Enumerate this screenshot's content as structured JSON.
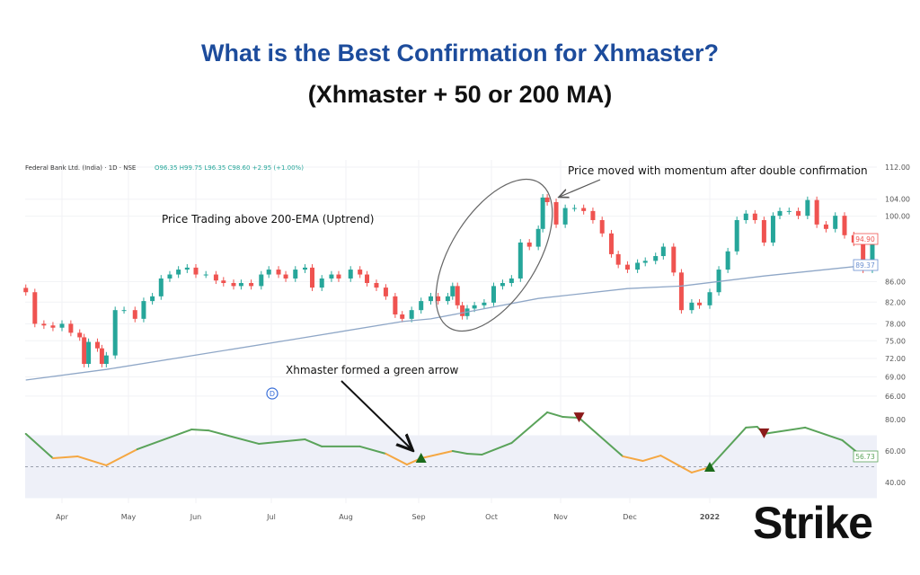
{
  "title": "What is the Best Confirmation for Xhmaster?",
  "subtitle": "(Xhmaster + 50 or 200 MA)",
  "logo_text": "Strike",
  "colors": {
    "title": "#1d4c9c",
    "up": "#26a69a",
    "down": "#ef5350",
    "ema": "#8fa7c7",
    "osc_green": "#5aa35a",
    "osc_orange": "#f5a742",
    "arrow_up": "#1b6b1b",
    "arrow_down": "#8b1a1a",
    "band": "#eef0f8"
  },
  "chart_data": {
    "type": "candlestick",
    "legend": {
      "symbol": "Federal Bank Ltd. (India) · 1D · NSE",
      "open": "O96.35",
      "high": "H99.75",
      "low": "L96.35",
      "close": "C98.60",
      "change": "+2.95 (+1.00%)"
    },
    "y_scale": "log",
    "ylim": [
      64,
      114
    ],
    "y_ticks": [
      "112.00",
      "104.00",
      "100.00",
      "86.00",
      "82.00",
      "78.00",
      "75.00",
      "72.00",
      "69.00",
      "66.00"
    ],
    "x_ticks": [
      {
        "label": "Apr",
        "date": "2021-04-01"
      },
      {
        "label": "May",
        "date": "2021-05-01"
      },
      {
        "label": "Jun",
        "date": "2021-06-01"
      },
      {
        "label": "Jul",
        "date": "2021-07-01"
      },
      {
        "label": "Aug",
        "date": "2021-08-01"
      },
      {
        "label": "Sep",
        "date": "2021-09-01"
      },
      {
        "label": "Oct",
        "date": "2021-10-01"
      },
      {
        "label": "Nov",
        "date": "2021-11-01"
      },
      {
        "label": "Dec",
        "date": "2021-12-01"
      },
      {
        "label": "2022",
        "date": "2022-01-01"
      }
    ],
    "last_price_label": "94.90",
    "ema_label": "89.37",
    "closes": [
      [
        "2021-03-16",
        83.9
      ],
      [
        "2021-03-20",
        78.0
      ],
      [
        "2021-03-24",
        77.7
      ],
      [
        "2021-03-28",
        77.3
      ],
      [
        "2021-04-01",
        78.0
      ],
      [
        "2021-04-05",
        76.4
      ],
      [
        "2021-04-09",
        75.6
      ],
      [
        "2021-04-11",
        71.1
      ],
      [
        "2021-04-13",
        74.8
      ],
      [
        "2021-04-17",
        73.7
      ],
      [
        "2021-04-19",
        71.1
      ],
      [
        "2021-04-21",
        72.5
      ],
      [
        "2021-04-25",
        80.5
      ],
      [
        "2021-04-29",
        80.5
      ],
      [
        "2021-05-04",
        78.9
      ],
      [
        "2021-05-08",
        82.2
      ],
      [
        "2021-05-12",
        83.1
      ],
      [
        "2021-05-16",
        86.6
      ],
      [
        "2021-05-20",
        87.4
      ],
      [
        "2021-05-24",
        88.4
      ],
      [
        "2021-05-28",
        88.8
      ],
      [
        "2021-06-01",
        87.4
      ],
      [
        "2021-06-05",
        87.4
      ],
      [
        "2021-06-09",
        86.2
      ],
      [
        "2021-06-12",
        85.7
      ],
      [
        "2021-06-16",
        85.1
      ],
      [
        "2021-06-19",
        85.7
      ],
      [
        "2021-06-23",
        85.1
      ],
      [
        "2021-06-27",
        87.4
      ],
      [
        "2021-06-30",
        88.4
      ],
      [
        "2021-07-04",
        87.4
      ],
      [
        "2021-07-07",
        86.6
      ],
      [
        "2021-07-11",
        88.4
      ],
      [
        "2021-07-15",
        88.8
      ],
      [
        "2021-07-18",
        84.8
      ],
      [
        "2021-07-22",
        86.6
      ],
      [
        "2021-07-26",
        87.4
      ],
      [
        "2021-07-29",
        86.6
      ],
      [
        "2021-08-03",
        88.4
      ],
      [
        "2021-08-07",
        87.4
      ],
      [
        "2021-08-10",
        85.7
      ],
      [
        "2021-08-14",
        84.8
      ],
      [
        "2021-08-18",
        83.1
      ],
      [
        "2021-08-22",
        79.7
      ],
      [
        "2021-08-25",
        78.9
      ],
      [
        "2021-08-29",
        80.5
      ],
      [
        "2021-09-02",
        82.2
      ],
      [
        "2021-09-06",
        83.1
      ],
      [
        "2021-09-09",
        82.2
      ],
      [
        "2021-09-13",
        83.1
      ],
      [
        "2021-09-15",
        85.1
      ],
      [
        "2021-09-17",
        81.4
      ],
      [
        "2021-09-19",
        79.4
      ],
      [
        "2021-09-21",
        80.8
      ],
      [
        "2021-09-24",
        81.4
      ],
      [
        "2021-09-28",
        81.9
      ],
      [
        "2021-10-02",
        85.1
      ],
      [
        "2021-10-06",
        85.7
      ],
      [
        "2021-10-10",
        86.6
      ],
      [
        "2021-10-14",
        94.1
      ],
      [
        "2021-10-18",
        93.2
      ],
      [
        "2021-10-22",
        97.1
      ],
      [
        "2021-10-24",
        104.4
      ],
      [
        "2021-10-26",
        103.3
      ],
      [
        "2021-10-30",
        98.1
      ],
      [
        "2021-11-03",
        101.9
      ],
      [
        "2021-11-07",
        101.9
      ],
      [
        "2021-11-11",
        101.2
      ],
      [
        "2021-11-15",
        99.1
      ],
      [
        "2021-11-19",
        96.1
      ],
      [
        "2021-11-23",
        91.6
      ],
      [
        "2021-11-26",
        89.4
      ],
      [
        "2021-11-30",
        88.4
      ],
      [
        "2021-12-04",
        89.8
      ],
      [
        "2021-12-07",
        90.2
      ],
      [
        "2021-12-11",
        91.2
      ],
      [
        "2021-12-14",
        93.2
      ],
      [
        "2021-12-18",
        87.8
      ],
      [
        "2021-12-21",
        80.5
      ],
      [
        "2021-12-25",
        81.9
      ],
      [
        "2021-12-28",
        81.4
      ],
      [
        "2022-01-01",
        83.9
      ],
      [
        "2022-01-05",
        88.4
      ],
      [
        "2022-01-09",
        92.2
      ],
      [
        "2022-01-13",
        99.1
      ],
      [
        "2022-01-17",
        100.6
      ],
      [
        "2022-01-21",
        99.1
      ],
      [
        "2022-01-25",
        94.1
      ],
      [
        "2022-01-29",
        100.1
      ],
      [
        "2022-02-01",
        101.2
      ],
      [
        "2022-02-05",
        101.2
      ],
      [
        "2022-02-09",
        100.1
      ],
      [
        "2022-02-13",
        103.8
      ],
      [
        "2022-02-17",
        98.1
      ],
      [
        "2022-02-21",
        97.1
      ],
      [
        "2022-02-25",
        100.1
      ],
      [
        "2022-03-01",
        95.7
      ],
      [
        "2022-03-05",
        94.1
      ],
      [
        "2022-03-09",
        88.4
      ],
      [
        "2022-03-13",
        94.9
      ]
    ],
    "ema200": [
      [
        "2021-03-16",
        68.5
      ],
      [
        "2021-04-21",
        70.2
      ],
      [
        "2021-07-11",
        75.3
      ],
      [
        "2021-08-25",
        78.4
      ],
      [
        "2021-09-06",
        78.9
      ],
      [
        "2021-10-22",
        82.7
      ],
      [
        "2021-11-30",
        84.6
      ],
      [
        "2021-12-21",
        85.1
      ],
      [
        "2022-01-25",
        87.1
      ],
      [
        "2022-03-05",
        89.0
      ],
      [
        "2022-03-13",
        89.37
      ]
    ],
    "oscillator": {
      "y_ticks": [
        "80.00",
        "60.00",
        "40.00"
      ],
      "band": [
        30,
        70
      ],
      "midline": 50,
      "last_label": "56.73",
      "orange_below": 58,
      "values": [
        [
          "2021-03-16",
          70.9
        ],
        [
          "2021-03-28",
          55.4
        ],
        [
          "2021-04-08",
          56.6
        ],
        [
          "2021-04-21",
          50.9
        ],
        [
          "2021-05-05",
          61.1
        ],
        [
          "2021-05-30",
          73.7
        ],
        [
          "2021-06-06",
          73.1
        ],
        [
          "2021-06-26",
          64.6
        ],
        [
          "2021-07-15",
          67.4
        ],
        [
          "2021-07-22",
          62.9
        ],
        [
          "2021-08-07",
          62.9
        ],
        [
          "2021-08-18",
          58.3
        ],
        [
          "2021-08-27",
          51.4
        ],
        [
          "2021-09-02",
          55.4
        ],
        [
          "2021-09-15",
          60.0
        ],
        [
          "2021-09-21",
          58.3
        ],
        [
          "2021-09-27",
          57.7
        ],
        [
          "2021-10-10",
          65.1
        ],
        [
          "2021-10-26",
          84.6
        ],
        [
          "2021-11-02",
          81.7
        ],
        [
          "2021-11-09",
          81.1
        ],
        [
          "2021-11-28",
          56.6
        ],
        [
          "2021-12-06",
          53.7
        ],
        [
          "2021-12-13",
          57.1
        ],
        [
          "2021-12-25",
          46.3
        ],
        [
          "2022-01-01",
          49.7
        ],
        [
          "2022-01-17",
          74.9
        ],
        [
          "2022-01-22",
          75.4
        ],
        [
          "2022-01-25",
          70.9
        ],
        [
          "2022-02-12",
          74.9
        ],
        [
          "2022-02-28",
          66.9
        ],
        [
          "2022-03-10",
          54.9
        ],
        [
          "2022-03-15",
          56.73
        ]
      ],
      "signals": [
        {
          "type": "buy",
          "date": "2021-09-02",
          "value": 55.4
        },
        {
          "type": "sell",
          "date": "2021-11-09",
          "value": 81.1
        },
        {
          "type": "buy",
          "date": "2022-01-01",
          "value": 49.7
        },
        {
          "type": "sell",
          "date": "2022-01-25",
          "value": 70.9
        }
      ]
    },
    "annotations": {
      "momentum": "Price moved with momentum after double confirmation",
      "uptrend": "Price Trading above 200-EMA (Uptrend)",
      "green_arrow": "Xhmaster formed a green arrow",
      "marker": "D"
    }
  }
}
